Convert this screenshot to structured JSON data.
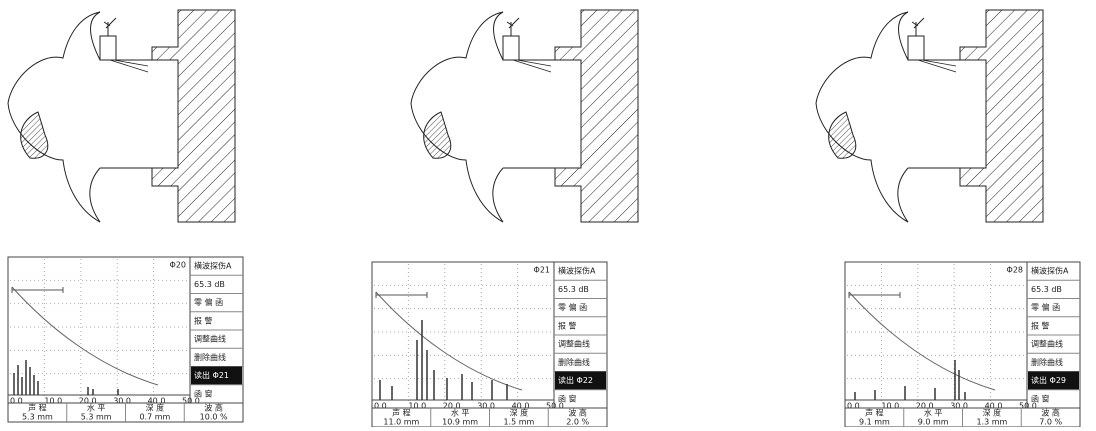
{
  "panels": [
    {
      "screen": {
        "marker": "Φ20",
        "menu": [
          "横波探伤A",
          "65.3 dB",
          "零 偏 函",
          "报 警",
          "调整曲线",
          "删除曲线",
          "读出 Φ21",
          "函 窗"
        ],
        "x_axis_labels": [
          "0.0",
          "10.0",
          "20.0",
          "30.0",
          "40.0",
          "50.0"
        ],
        "readouts": [
          {
            "label": "声 程",
            "value": "5.3 mm"
          },
          {
            "label": "水 平",
            "value": "5.3 mm"
          },
          {
            "label": "深 度",
            "value": "0.7 mm"
          },
          {
            "label": "波 高",
            "value": "10.0 %"
          }
        ]
      }
    },
    {
      "screen": {
        "marker": "Φ21",
        "menu": [
          "横波探伤A",
          "65.3 dB",
          "零 偏 函",
          "报 警",
          "调整曲线",
          "删除曲线",
          "读出 Φ22",
          "函 窗"
        ],
        "x_axis_labels": [
          "0.0",
          "10.0",
          "20.0",
          "30.0",
          "40.0",
          "50.0"
        ],
        "readouts": [
          {
            "label": "声 程",
            "value": "11.0 mm"
          },
          {
            "label": "水 平",
            "value": "10.9 mm"
          },
          {
            "label": "深 度",
            "value": "1.5 mm"
          },
          {
            "label": "波 高",
            "value": "2.0 %"
          }
        ]
      }
    },
    {
      "screen": {
        "marker": "Φ28",
        "menu": [
          "横波探伤A",
          "65.3 dB",
          "零 偏 函",
          "报 警",
          "调整曲线",
          "删除曲线",
          "读出 Φ29",
          "函 窗"
        ],
        "x_axis_labels": [
          "0.0",
          "10.0",
          "20.0",
          "30.0",
          "40.0",
          "50.0"
        ],
        "readouts": [
          {
            "label": "声 程",
            "value": "9.1 mm"
          },
          {
            "label": "水 平",
            "value": "9.0 mm"
          },
          {
            "label": "深 度",
            "value": "1.3 mm"
          },
          {
            "label": "波 高",
            "value": "7.0 %"
          }
        ]
      }
    }
  ]
}
